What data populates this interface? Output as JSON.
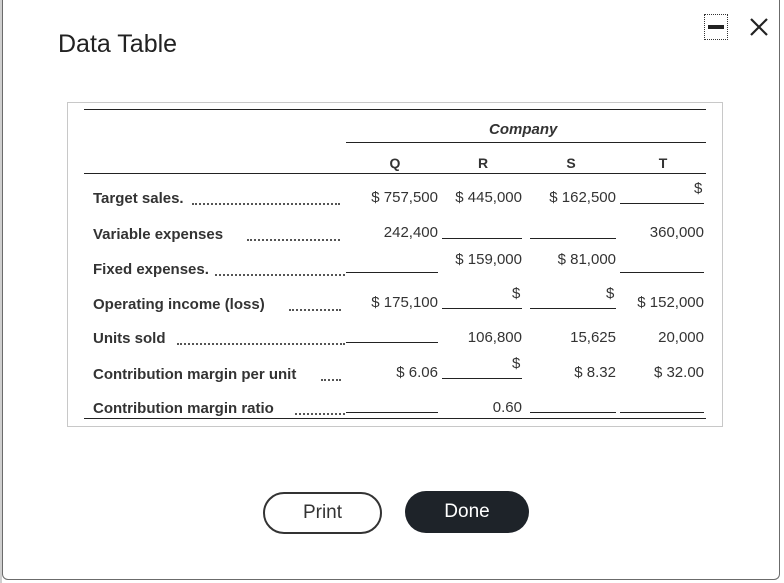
{
  "dialog": {
    "title": "Data Table",
    "print_label": "Print",
    "done_label": "Done",
    "minimize_icon": "minimize-icon",
    "close_icon": "close-icon"
  },
  "table": {
    "group_header": "Company",
    "columns": [
      "Q",
      "R",
      "S",
      "T"
    ],
    "rows": [
      {
        "label": "Target sales.",
        "cells": [
          "$ 757,500",
          "$ 445,000",
          "$ 162,500",
          ""
        ]
      },
      {
        "label": "Variable expenses",
        "cells": [
          "242,400",
          "",
          "",
          "360,000"
        ]
      },
      {
        "label": "Fixed expenses.",
        "cells": [
          "",
          "$ 159,000",
          "$ 81,000",
          ""
        ]
      },
      {
        "label": "Operating income (loss)",
        "cells": [
          "$ 175,100",
          "",
          "",
          "$ 152,000"
        ]
      },
      {
        "label": "Units sold",
        "cells": [
          "",
          "106,800",
          "15,625",
          "20,000"
        ]
      },
      {
        "label": "Contribution margin per unit",
        "cells": [
          "$ 6.06",
          "",
          "$ 8.32",
          "$ 32.00"
        ]
      },
      {
        "label": "Contribution margin ratio",
        "cells": [
          "",
          "0.60",
          "",
          ""
        ]
      }
    ],
    "currency_symbol": "$"
  }
}
